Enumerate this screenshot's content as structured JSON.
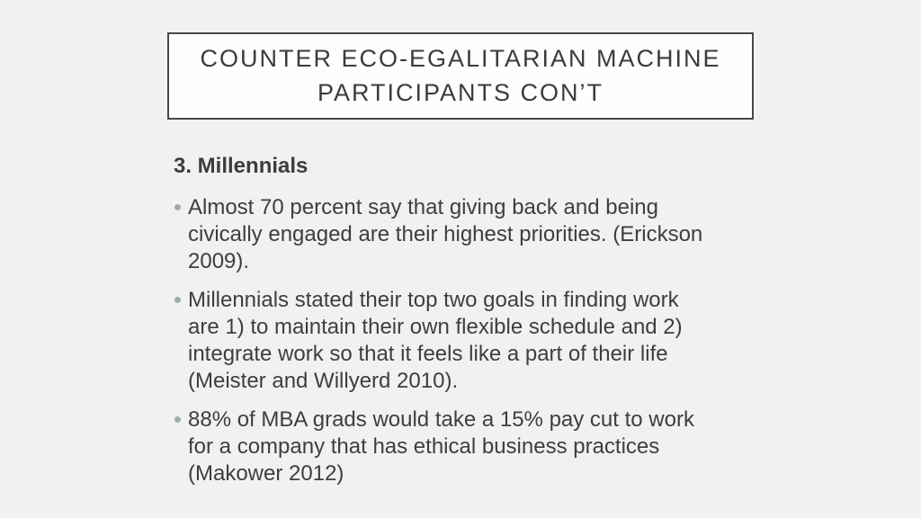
{
  "slide": {
    "background_color": "#f1f1f1",
    "title": {
      "full": "COUNTER ECO-EGALITARIAN MACHINE PARTICIPANTS CON’T",
      "lines": [
        "COUNTER ECO-EGALITARIAN MACHINE",
        "PARTICIPANTS CON’T"
      ],
      "box_background": "#fefefe",
      "border_color": "#484848",
      "text_color": "#3b3b3b"
    },
    "content": {
      "heading": "3. Millennials",
      "text_color": "#3e3e3e",
      "bullet_color": "#9fabb0",
      "bullets": [
        {
          "text": "Almost 70 percent say that giving back and being civically engaged are their highest priorities. (Erickson 2009).",
          "lines": [
            "Almost 70 percent say that giving back and being",
            "civically engaged are their highest priorities. (Erickson",
            "2009)."
          ]
        },
        {
          "text": "Millennials stated their top two goals in finding work are 1) to maintain their own flexible schedule and 2) integrate work so that it feels like a part of their life (Meister and Willyerd 2010).",
          "lines": [
            "Millennials stated their top two goals in finding work",
            "are 1) to maintain their own flexible schedule and 2)",
            "integrate work so that it feels like a part of their life",
            "(Meister and Willyerd 2010)."
          ]
        },
        {
          "text": "88% of MBA grads would take a 15% pay cut to work for a company that has ethical business practices (Makower 2012)",
          "lines": [
            "88% of MBA grads would take a 15% pay cut to work",
            "for a company that has ethical business practices",
            "(Makower 2012)"
          ]
        }
      ]
    }
  }
}
